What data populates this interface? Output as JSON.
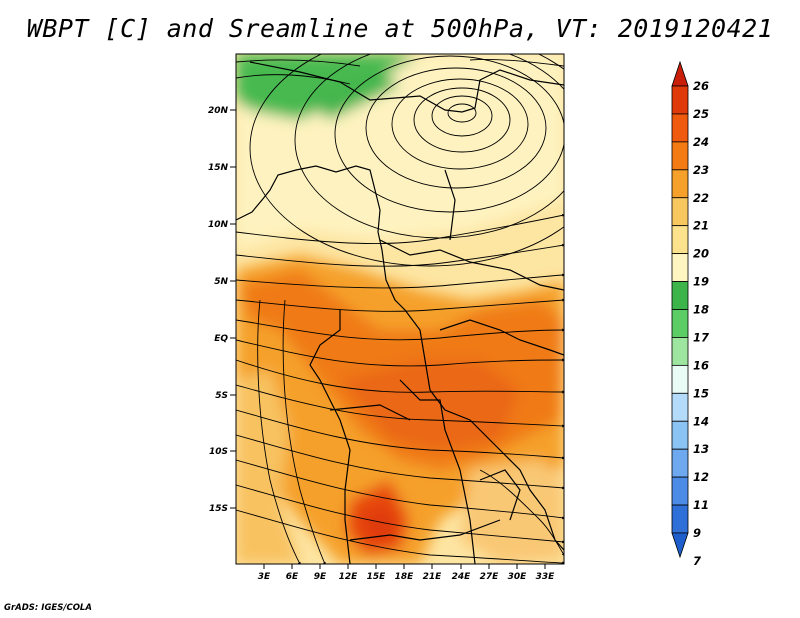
{
  "title": "WBPT [C] and Sreamline at 500hPa, VT: 2019120421",
  "credit": "GrADS: IGES/COLA",
  "map": {
    "variable": "Wet-bulb potential temperature [C]",
    "level": "500hPa",
    "valid_time": "2019120421",
    "lat_labels": [
      "20N",
      "15N",
      "10N",
      "5N",
      "EQ",
      "5S",
      "10S",
      "15S"
    ],
    "lon_labels": [
      "3E",
      "6E",
      "9E",
      "12E",
      "15E",
      "18E",
      "21E",
      "24E",
      "27E",
      "30E",
      "33E"
    ]
  },
  "colorbar": {
    "labels": [
      "26",
      "25",
      "24",
      "23",
      "22",
      "21",
      "20",
      "19",
      "18",
      "17",
      "16",
      "15",
      "14",
      "13",
      "12",
      "11",
      "9",
      "7"
    ],
    "colors": [
      "#c81e0a",
      "#e03a0a",
      "#f05a0f",
      "#f47a14",
      "#f5a02a",
      "#f8c860",
      "#fde28e",
      "#fef5c0",
      "#3cb44a",
      "#5ccd64",
      "#9ee6a0",
      "#e8fbf5",
      "#b4dcfa",
      "#8cc3f5",
      "#6ea8ee",
      "#4c8ce6",
      "#2e6fd8",
      "#1e5ecc"
    ]
  }
}
